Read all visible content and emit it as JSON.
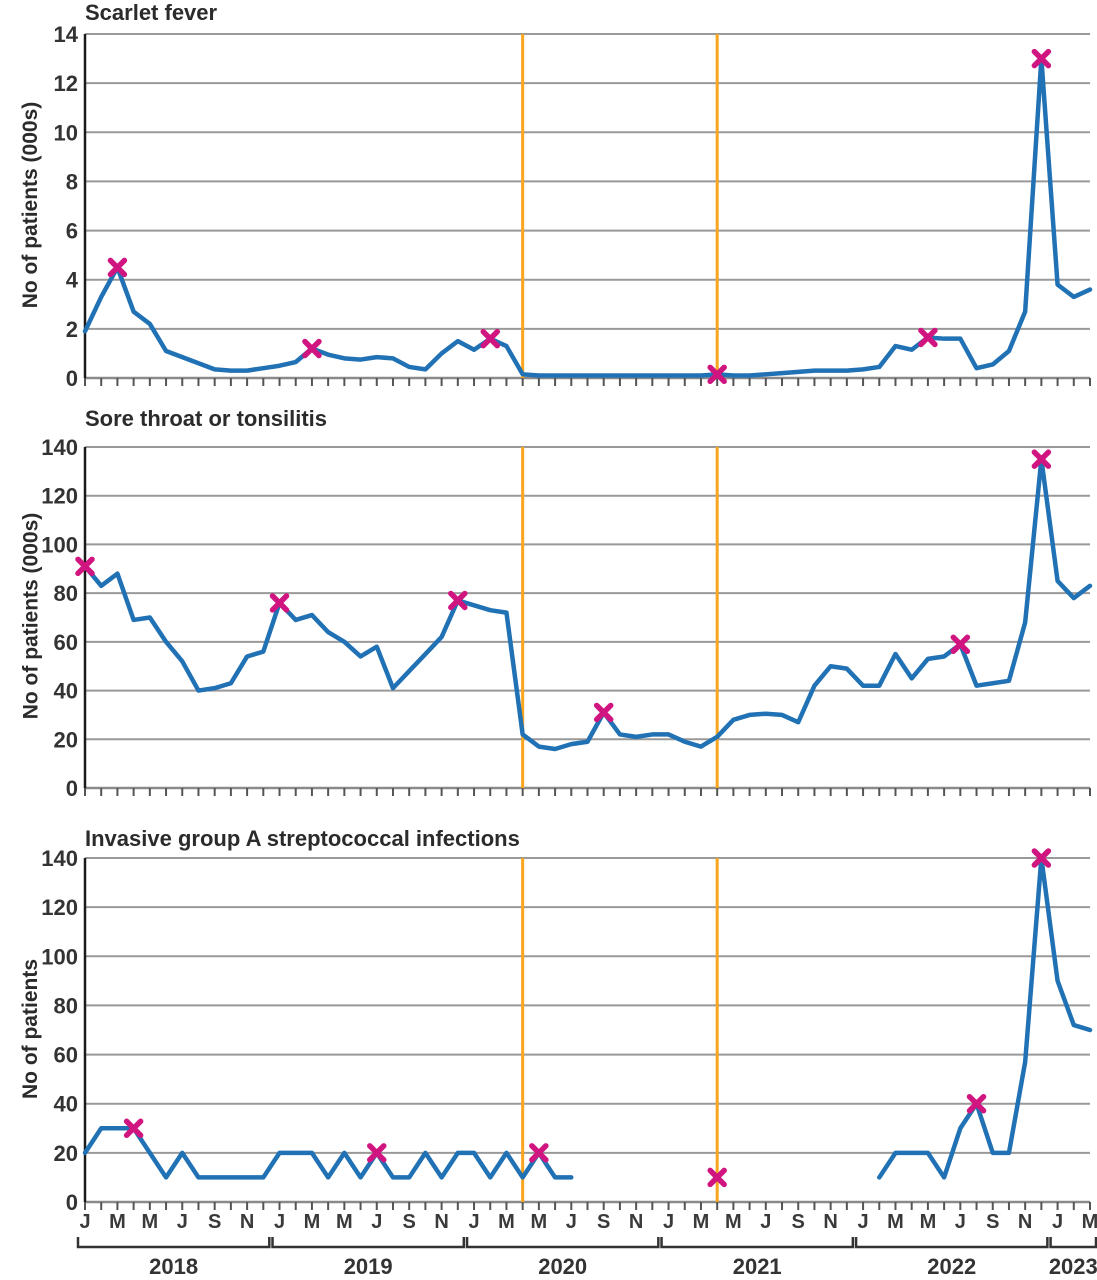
{
  "figure": {
    "type": "multi-panel-line-figure",
    "panel_count": 3
  },
  "colors": {
    "series_line": "#2171b5",
    "peak_marker": "#d11580",
    "lockdown_line": "#f9a51e",
    "gridline": "#999999",
    "axis_line": "#1a1a1a",
    "tick_text": "#333333",
    "title_text": "#2b2b2b"
  },
  "x_axis": {
    "start_month": "Jan 2018",
    "end_month": "Mar 2023",
    "month_tick_labels": [
      "J",
      "M",
      "M",
      "J",
      "S",
      "N",
      "J",
      "M",
      "M",
      "J",
      "S",
      "N",
      "J",
      "M",
      "M",
      "J",
      "S",
      "N",
      "J",
      "M",
      "M",
      "J",
      "S",
      "N",
      "J",
      "M",
      "M",
      "J",
      "S",
      "N",
      "J",
      "M"
    ],
    "years": [
      {
        "label": "2018",
        "from": 0,
        "to": 11
      },
      {
        "label": "2019",
        "from": 12,
        "to": 23
      },
      {
        "label": "2020",
        "from": 24,
        "to": 35
      },
      {
        "label": "2021",
        "from": 36,
        "to": 47
      },
      {
        "label": "2022",
        "from": 48,
        "to": 59
      },
      {
        "label": "2023",
        "from": 60,
        "to": 62
      }
    ]
  },
  "event_lines": [
    {
      "month_index": 27
    },
    {
      "month_index": 39
    }
  ],
  "chart_data": [
    {
      "type": "line",
      "title": "Scarlet fever",
      "ylabel": "No of patients (000s)",
      "ylim": [
        0,
        14
      ],
      "ytick_step": 2,
      "grid": true,
      "values": [
        1.9,
        3.3,
        4.5,
        2.7,
        2.2,
        1.1,
        0.85,
        0.6,
        0.35,
        0.3,
        0.3,
        0.4,
        0.5,
        0.65,
        1.2,
        0.95,
        0.8,
        0.75,
        0.85,
        0.8,
        0.45,
        0.35,
        1.0,
        1.5,
        1.15,
        1.6,
        1.3,
        0.15,
        0.1,
        0.1,
        0.1,
        0.1,
        0.1,
        0.1,
        0.1,
        0.1,
        0.1,
        0.1,
        0.1,
        0.15,
        0.1,
        0.1,
        0.15,
        0.2,
        0.25,
        0.3,
        0.3,
        0.3,
        0.35,
        0.45,
        1.3,
        1.15,
        1.65,
        1.6,
        1.6,
        0.4,
        0.55,
        1.1,
        2.7,
        13,
        3.8,
        3.3,
        3.6
      ],
      "marker_indices": [
        2,
        14,
        25,
        39,
        52,
        59
      ]
    },
    {
      "type": "line",
      "title": "Sore throat or tonsilitis",
      "ylabel": "No of patients (000s)",
      "ylim": [
        0,
        140
      ],
      "ytick_step": 20,
      "grid": true,
      "values": [
        91,
        83,
        88,
        69,
        70,
        60,
        52,
        40,
        41,
        43,
        54,
        56,
        76,
        69,
        71,
        64,
        60,
        54,
        58,
        41,
        48,
        55,
        62,
        77,
        75,
        73,
        72,
        22,
        17,
        16,
        18,
        19,
        31,
        22,
        21,
        22,
        22,
        19,
        17,
        21,
        28,
        30,
        30.5,
        30,
        27,
        42,
        50,
        49,
        42,
        42,
        55,
        45,
        53,
        54,
        59,
        42,
        43,
        44,
        68,
        135,
        85,
        78,
        83
      ],
      "marker_indices": [
        0,
        12,
        23,
        32,
        54,
        59
      ]
    },
    {
      "type": "line",
      "title": "Invasive group A streptococcal infections",
      "ylabel": "No of patients",
      "ylim": [
        0,
        140
      ],
      "ytick_step": 20,
      "grid": true,
      "values": [
        20,
        30,
        30,
        30,
        20,
        10,
        20,
        10,
        10,
        10,
        10,
        10,
        20,
        20,
        20,
        10,
        20,
        10,
        20,
        10,
        10,
        20,
        10,
        20,
        20,
        10,
        20,
        10,
        20,
        10,
        10,
        null,
        null,
        null,
        null,
        null,
        null,
        null,
        null,
        10,
        null,
        null,
        null,
        null,
        null,
        null,
        null,
        null,
        null,
        10,
        20,
        20,
        20,
        10,
        30,
        40,
        20,
        20,
        57,
        140,
        90,
        72,
        70
      ],
      "marker_indices": [
        3,
        18,
        28,
        39,
        55,
        59
      ]
    }
  ]
}
